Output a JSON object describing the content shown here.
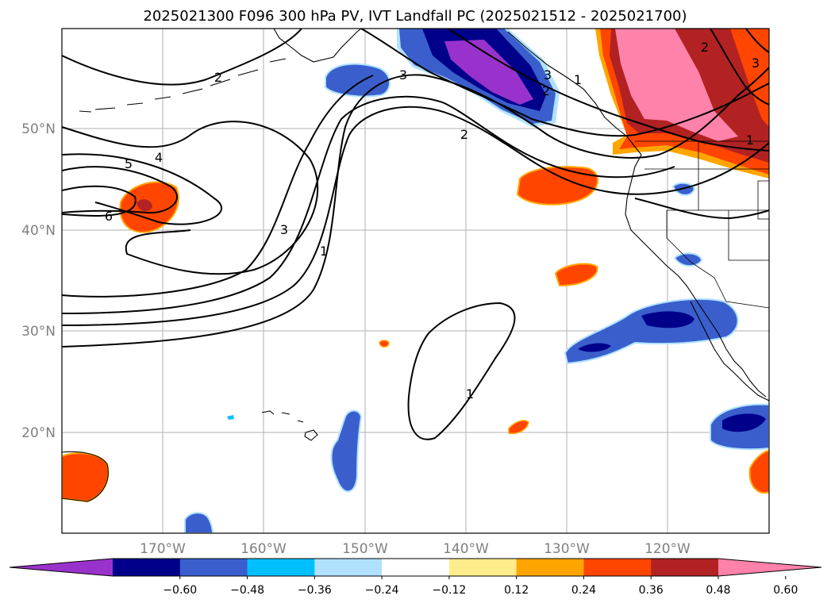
{
  "title": "2025021300 F096 300 hPa PV, IVT Landfall PC (2025021512 - 2025021700)",
  "map": {
    "lon_ticks": [
      "170°W",
      "160°W",
      "150°W",
      "140°W",
      "130°W",
      "120°W"
    ],
    "lat_ticks": [
      "50°N",
      "40°N",
      "30°N",
      "20°N"
    ],
    "contour_labels": [
      "1",
      "1",
      "1",
      "1",
      "2",
      "2",
      "2",
      "2",
      "3",
      "3",
      "3",
      "3",
      "4",
      "5",
      "6"
    ]
  },
  "colorbar": {
    "colors": [
      "#9932CC",
      "#00008B",
      "#3A5FCD",
      "#00BFFF",
      "#B0E2FF",
      "#FFFFFF",
      "#FFEC8B",
      "#FFA500",
      "#FF4500",
      "#B22222",
      "#FF82AB"
    ],
    "tick_labels": [
      "−0.60",
      "−0.48",
      "−0.36",
      "−0.24",
      "−0.12",
      "0.12",
      "0.24",
      "0.36",
      "0.48",
      "0.60"
    ]
  }
}
